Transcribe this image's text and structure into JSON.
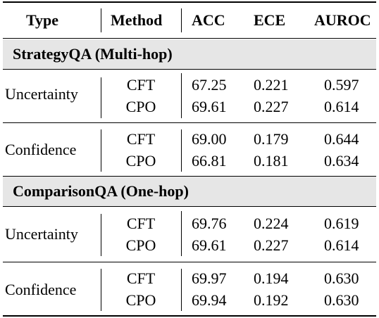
{
  "headers": {
    "type": "Type",
    "method": "Method",
    "acc": "ACC",
    "ece": "ECE",
    "auroc": "AUROC"
  },
  "sections": [
    {
      "title": "StrategyQA (Multi-hop)",
      "groups": [
        {
          "type": "Uncertainty",
          "rows": [
            {
              "method": "CFT",
              "acc": "67.25",
              "ece": "0.221",
              "auroc": "0.597"
            },
            {
              "method": "CPO",
              "acc": "69.61",
              "ece": "0.227",
              "auroc": "0.614"
            }
          ]
        },
        {
          "type": "Confidence",
          "rows": [
            {
              "method": "CFT",
              "acc": "69.00",
              "ece": "0.179",
              "auroc": "0.644"
            },
            {
              "method": "CPO",
              "acc": "66.81",
              "ece": "0.181",
              "auroc": "0.634"
            }
          ]
        }
      ]
    },
    {
      "title": "ComparisonQA (One-hop)",
      "groups": [
        {
          "type": "Uncertainty",
          "rows": [
            {
              "method": "CFT",
              "acc": "69.76",
              "ece": "0.224",
              "auroc": "0.619"
            },
            {
              "method": "CPO",
              "acc": "69.61",
              "ece": "0.227",
              "auroc": "0.614"
            }
          ]
        },
        {
          "type": "Confidence",
          "rows": [
            {
              "method": "CFT",
              "acc": "69.97",
              "ece": "0.194",
              "auroc": "0.630"
            },
            {
              "method": "CPO",
              "acc": "69.94",
              "ece": "0.192",
              "auroc": "0.630"
            }
          ]
        }
      ]
    }
  ]
}
